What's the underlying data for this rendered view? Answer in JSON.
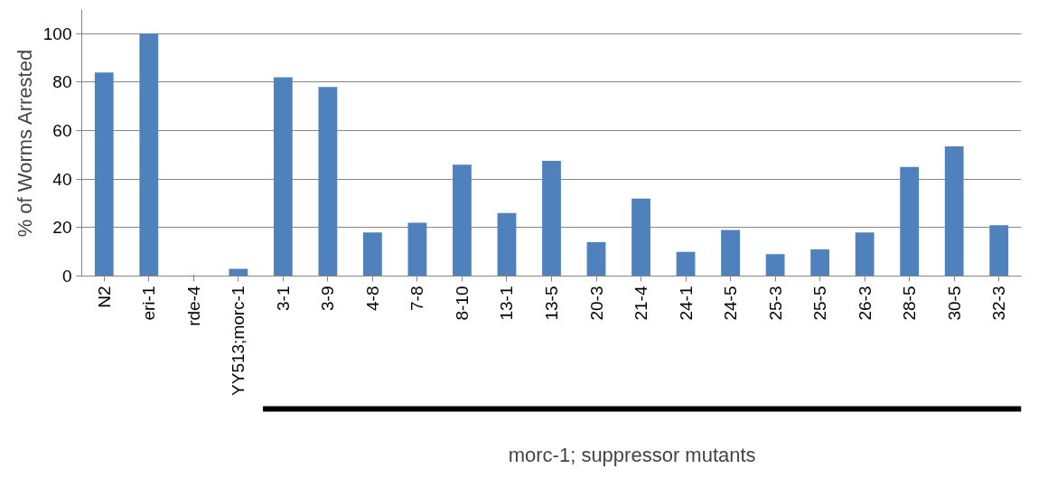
{
  "chart_data": {
    "type": "bar",
    "ylabel": "% of Worms Arrested",
    "categories": [
      "N2",
      "eri-1",
      "rde-4",
      "YY513;morc-1",
      "3-1",
      "3-9",
      "4-8",
      "7-8",
      "8-10",
      "13-1",
      "13-5",
      "20-3",
      "21-4",
      "24-1",
      "24-5",
      "25-3",
      "25-5",
      "26-3",
      "28-5",
      "30-5",
      "32-3"
    ],
    "values": [
      84,
      100,
      0,
      3,
      82,
      78,
      18,
      22,
      46,
      26,
      47.5,
      14,
      32,
      10,
      19,
      9,
      11,
      18,
      45,
      53.5,
      21
    ],
    "color": "#4f81bd",
    "ylim": [
      0,
      110
    ],
    "yticks": [
      0,
      20,
      40,
      60,
      80,
      100
    ],
    "grid": "y",
    "annotations": [
      "morc-1; suppressor mutants"
    ]
  }
}
